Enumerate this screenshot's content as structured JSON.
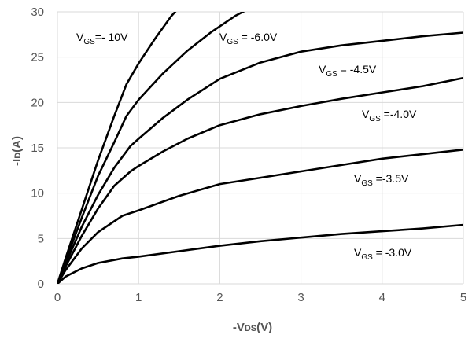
{
  "chart_data": {
    "type": "line",
    "xlabel": {
      "prefix": "-V",
      "sub": "DS",
      "suffix": "(V)"
    },
    "ylabel": {
      "prefix": "-I",
      "sub": "D",
      "suffix": "(A)"
    },
    "xlim": [
      0,
      5
    ],
    "ylim": [
      0,
      30
    ],
    "xticks": [
      0,
      1,
      2,
      3,
      4,
      5
    ],
    "yticks": [
      0,
      5,
      10,
      15,
      20,
      25,
      30
    ],
    "grid": true,
    "legend": "none",
    "series": [
      {
        "label": {
          "prefix": "V",
          "sub": "GS",
          "suffix": "=- 10V"
        },
        "x": [
          0,
          0.1,
          0.3,
          0.5,
          0.7,
          0.85,
          1.0,
          1.2,
          1.4,
          1.6
        ],
        "y": [
          0,
          2.8,
          8.2,
          13.6,
          18.5,
          22.0,
          24.3,
          27.0,
          29.5,
          31.5
        ]
      },
      {
        "label": {
          "prefix": "V",
          "sub": "GS",
          "suffix": " = -6.0V"
        },
        "x": [
          0,
          0.1,
          0.3,
          0.5,
          0.7,
          0.85,
          1.0,
          1.3,
          1.6,
          1.9,
          2.2,
          2.5
        ],
        "y": [
          0,
          2.5,
          7.3,
          11.9,
          15.6,
          18.5,
          20.3,
          23.2,
          25.7,
          27.8,
          29.6,
          31.0
        ]
      },
      {
        "label": {
          "prefix": "V",
          "sub": "GS",
          "suffix": " = -4.5V"
        },
        "x": [
          0,
          0.1,
          0.3,
          0.5,
          0.7,
          0.9,
          1.0,
          1.3,
          1.6,
          2.0,
          2.5,
          3.0,
          3.5,
          4.0,
          4.5,
          5.0
        ],
        "y": [
          0,
          2.2,
          6.3,
          9.8,
          12.8,
          15.2,
          16.0,
          18.3,
          20.3,
          22.6,
          24.4,
          25.6,
          26.3,
          26.8,
          27.3,
          27.7
        ]
      },
      {
        "label": {
          "prefix": "V",
          "sub": "GS",
          "suffix": " =-4.0V"
        },
        "x": [
          0,
          0.1,
          0.3,
          0.5,
          0.7,
          0.9,
          1.0,
          1.3,
          1.6,
          2.0,
          2.5,
          3.0,
          3.5,
          4.0,
          4.5,
          5.0
        ],
        "y": [
          0,
          1.9,
          5.3,
          8.3,
          10.8,
          12.4,
          13.0,
          14.6,
          16.0,
          17.5,
          18.7,
          19.6,
          20.4,
          21.1,
          21.8,
          22.7
        ]
      },
      {
        "label": {
          "prefix": "V",
          "sub": "GS",
          "suffix": " =-3.5V"
        },
        "x": [
          0,
          0.1,
          0.3,
          0.5,
          0.8,
          1.0,
          1.5,
          2.0,
          2.5,
          3.0,
          3.5,
          4.0,
          4.5,
          5.0
        ],
        "y": [
          0,
          1.5,
          3.9,
          5.7,
          7.5,
          8.1,
          9.7,
          11.0,
          11.7,
          12.4,
          13.1,
          13.8,
          14.3,
          14.8
        ]
      },
      {
        "label": {
          "prefix": "V",
          "sub": "GS",
          "suffix": " = -3.0V"
        },
        "x": [
          0,
          0.1,
          0.3,
          0.5,
          0.8,
          1.0,
          1.5,
          2.0,
          2.5,
          3.0,
          3.5,
          4.0,
          4.5,
          5.0
        ],
        "y": [
          0,
          0.8,
          1.7,
          2.3,
          2.8,
          3.0,
          3.6,
          4.2,
          4.7,
          5.1,
          5.5,
          5.8,
          6.1,
          6.5
        ]
      }
    ]
  }
}
